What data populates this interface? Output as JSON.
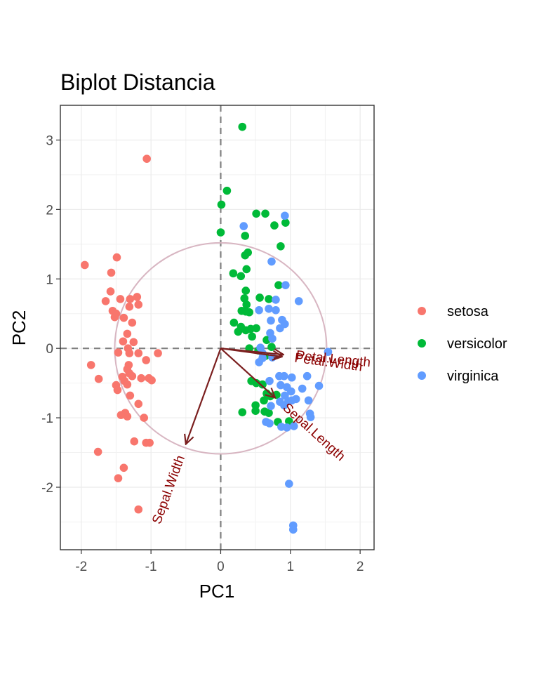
{
  "chart_data": {
    "type": "scatter",
    "title": "Biplot Distancia",
    "xlabel": "PC1",
    "ylabel": "PC2",
    "xlim": [
      -2.3,
      2.2
    ],
    "ylim": [
      -2.9,
      3.5
    ],
    "xticks": [
      -2,
      -1,
      0,
      1,
      2
    ],
    "yticks": [
      -2,
      -1,
      0,
      1,
      2,
      3
    ],
    "xtick_labels": [
      "-2",
      "-1",
      "0",
      "1",
      "2"
    ],
    "ytick_labels": [
      "-2",
      "-1",
      "0",
      "1",
      "2",
      "3"
    ],
    "grid": true,
    "legend_position": "right",
    "circle_radius": 1.52,
    "colors": {
      "setosa": "#F8766D",
      "versicolor": "#00BA38",
      "virginica": "#619CFF",
      "arrow": "#7b1f1f",
      "circle": "#d8b6c2",
      "guide": "#7f7f7f"
    },
    "series": [
      {
        "name": "setosa",
        "color": "#F8766D",
        "points": [
          [
            -1.06,
            2.73
          ],
          [
            -1.49,
            1.31
          ],
          [
            -1.95,
            1.2
          ],
          [
            -1.57,
            1.09
          ],
          [
            -1.58,
            0.82
          ],
          [
            -1.2,
            0.74
          ],
          [
            -1.44,
            0.71
          ],
          [
            -1.3,
            0.71
          ],
          [
            -1.65,
            0.68
          ],
          [
            -1.18,
            0.63
          ],
          [
            -1.31,
            0.6
          ],
          [
            -1.55,
            0.54
          ],
          [
            -1.5,
            0.5
          ],
          [
            -1.52,
            0.45
          ],
          [
            -1.39,
            0.44
          ],
          [
            -1.27,
            0.37
          ],
          [
            -1.34,
            0.21
          ],
          [
            -1.4,
            0.1
          ],
          [
            -1.25,
            0.09
          ],
          [
            -1.47,
            -0.06
          ],
          [
            -1.33,
            0.0
          ],
          [
            -1.31,
            -0.07
          ],
          [
            -0.9,
            -0.07
          ],
          [
            -1.18,
            -0.07
          ],
          [
            -1.07,
            -0.17
          ],
          [
            -1.32,
            -0.24
          ],
          [
            -1.34,
            -0.3
          ],
          [
            -1.86,
            -0.24
          ],
          [
            -1.31,
            -0.36
          ],
          [
            -1.41,
            -0.41
          ],
          [
            -1.38,
            -0.47
          ],
          [
            -1.27,
            -0.4
          ],
          [
            -1.14,
            -0.43
          ],
          [
            -1.03,
            -0.43
          ],
          [
            -0.99,
            -0.46
          ],
          [
            -1.75,
            -0.44
          ],
          [
            -1.5,
            -0.53
          ],
          [
            -1.34,
            -0.52
          ],
          [
            -1.48,
            -0.6
          ],
          [
            -1.3,
            -0.68
          ],
          [
            -1.18,
            -0.8
          ],
          [
            -1.37,
            -0.93
          ],
          [
            -1.43,
            -0.96
          ],
          [
            -1.34,
            -0.98
          ],
          [
            -1.1,
            -1.0
          ],
          [
            -1.24,
            -1.34
          ],
          [
            -1.07,
            -1.36
          ],
          [
            -1.02,
            -1.36
          ],
          [
            -1.76,
            -1.49
          ],
          [
            -1.39,
            -1.72
          ],
          [
            -1.47,
            -1.87
          ],
          [
            -1.18,
            -2.32
          ]
        ]
      },
      {
        "name": "versicolor",
        "color": "#00BA38",
        "points": [
          [
            0.31,
            3.19
          ],
          [
            0.09,
            2.27
          ],
          [
            0.01,
            2.07
          ],
          [
            0.51,
            1.94
          ],
          [
            0.64,
            1.94
          ],
          [
            0.93,
            1.81
          ],
          [
            0.77,
            1.77
          ],
          [
            0.0,
            1.67
          ],
          [
            0.35,
            1.62
          ],
          [
            0.86,
            1.47
          ],
          [
            0.39,
            1.38
          ],
          [
            0.35,
            1.34
          ],
          [
            0.18,
            1.08
          ],
          [
            0.29,
            1.04
          ],
          [
            0.37,
            1.14
          ],
          [
            0.83,
            0.91
          ],
          [
            0.36,
            0.83
          ],
          [
            0.34,
            0.72
          ],
          [
            0.56,
            0.73
          ],
          [
            0.69,
            0.71
          ],
          [
            0.37,
            0.63
          ],
          [
            0.3,
            0.54
          ],
          [
            0.36,
            0.53
          ],
          [
            0.41,
            0.52
          ],
          [
            0.19,
            0.37
          ],
          [
            0.29,
            0.31
          ],
          [
            0.43,
            0.28
          ],
          [
            0.36,
            0.26
          ],
          [
            0.51,
            0.29
          ],
          [
            0.25,
            0.24
          ],
          [
            0.45,
            0.17
          ],
          [
            0.66,
            0.12
          ],
          [
            0.41,
            0.0
          ],
          [
            0.54,
            -0.03
          ],
          [
            0.64,
            -0.11
          ],
          [
            0.73,
            0.02
          ],
          [
            0.44,
            -0.47
          ],
          [
            0.51,
            -0.5
          ],
          [
            0.6,
            -0.52
          ],
          [
            0.66,
            -0.65
          ],
          [
            0.71,
            -0.69
          ],
          [
            0.62,
            -0.75
          ],
          [
            0.8,
            -0.67
          ],
          [
            0.5,
            -0.82
          ],
          [
            0.31,
            -0.92
          ],
          [
            0.5,
            -0.9
          ],
          [
            0.69,
            -0.93
          ],
          [
            0.63,
            -0.91
          ],
          [
            0.82,
            -1.06
          ],
          [
            0.98,
            -1.05
          ]
        ]
      },
      {
        "name": "virginica",
        "color": "#619CFF",
        "points": [
          [
            0.92,
            1.91
          ],
          [
            0.33,
            1.76
          ],
          [
            0.73,
            1.25
          ],
          [
            0.93,
            0.91
          ],
          [
            1.12,
            0.68
          ],
          [
            0.79,
            0.7
          ],
          [
            0.69,
            0.57
          ],
          [
            0.55,
            0.55
          ],
          [
            0.79,
            0.55
          ],
          [
            0.88,
            0.41
          ],
          [
            0.92,
            0.35
          ],
          [
            0.72,
            0.4
          ],
          [
            0.85,
            0.29
          ],
          [
            0.71,
            0.22
          ],
          [
            0.74,
            0.14
          ],
          [
            0.57,
            0.01
          ],
          [
            0.6,
            -0.07
          ],
          [
            0.6,
            -0.14
          ],
          [
            0.74,
            -0.13
          ],
          [
            0.55,
            -0.2
          ],
          [
            0.84,
            -0.4
          ],
          [
            0.91,
            -0.4
          ],
          [
            1.02,
            -0.42
          ],
          [
            1.24,
            -0.4
          ],
          [
            0.7,
            -0.47
          ],
          [
            0.86,
            -0.53
          ],
          [
            0.95,
            -0.56
          ],
          [
            1.17,
            -0.58
          ],
          [
            1.41,
            -0.54
          ],
          [
            1.01,
            -0.62
          ],
          [
            0.92,
            -0.68
          ],
          [
            0.97,
            -0.76
          ],
          [
            1.02,
            -0.75
          ],
          [
            1.08,
            -0.73
          ],
          [
            1.26,
            -0.75
          ],
          [
            0.72,
            -0.83
          ],
          [
            0.85,
            -0.77
          ],
          [
            0.91,
            -0.82
          ],
          [
            1.28,
            -0.94
          ],
          [
            1.29,
            -0.99
          ],
          [
            0.65,
            -1.06
          ],
          [
            0.7,
            -1.08
          ],
          [
            0.87,
            -1.13
          ],
          [
            0.95,
            -1.14
          ],
          [
            1.05,
            -1.12
          ],
          [
            0.98,
            -1.95
          ],
          [
            1.04,
            -2.55
          ],
          [
            1.04,
            -2.61
          ],
          [
            1.54,
            -0.05
          ]
        ]
      }
    ],
    "loadings": [
      {
        "name": "Sepal.Length",
        "x": 0.78,
        "y": -0.71
      },
      {
        "name": "Sepal.Width",
        "x": -0.5,
        "y": -1.38
      },
      {
        "name": "Petal.Length",
        "x": 0.9,
        "y": -0.09
      },
      {
        "name": "Petal.Width",
        "x": 0.88,
        "y": -0.12
      }
    ]
  }
}
